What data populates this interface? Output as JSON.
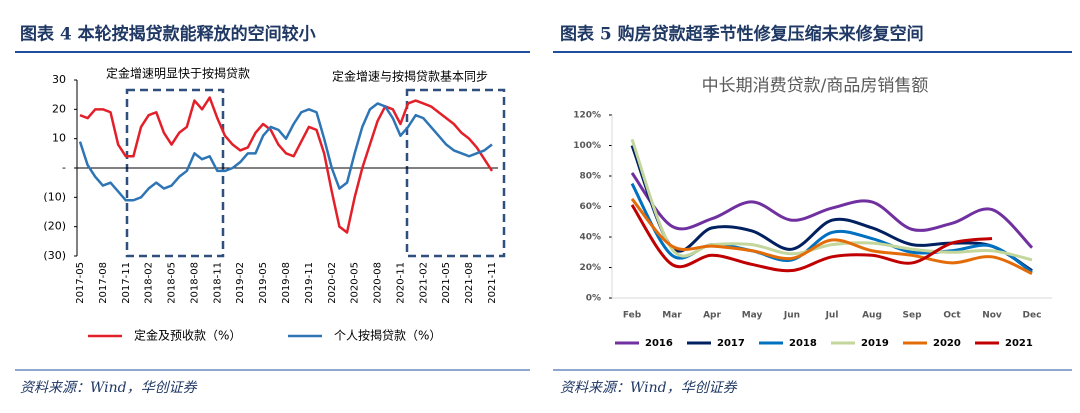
{
  "chart_data": [
    {
      "type": "line",
      "title": "图表 4 本轮按揭贷款能释放的空间较小",
      "annotations": [
        "定金增速明显快于按揭贷款",
        "定金增速与按揭贷款基本同步"
      ],
      "categories": [
        "2017-05",
        null,
        null,
        "2017-08",
        null,
        null,
        "2017-11",
        null,
        null,
        "2018-02",
        null,
        null,
        "2018-05",
        null,
        null,
        "2018-08",
        null,
        null,
        "2018-11",
        null,
        null,
        "2019-02",
        null,
        null,
        "2019-05",
        null,
        null,
        "2019-08",
        null,
        null,
        "2019-11",
        null,
        null,
        "2020-02",
        null,
        null,
        "2020-05",
        null,
        null,
        "2020-08",
        null,
        null,
        "2020-11",
        null,
        null,
        "2021-02",
        null,
        null,
        "2021-05",
        null,
        null,
        "2021-08",
        null,
        null,
        "2021-11"
      ],
      "series": [
        {
          "name": "定金及预收款（%）",
          "color": "#e3202a",
          "values": [
            18,
            17,
            20,
            20,
            19,
            8,
            4,
            4,
            14,
            18,
            19,
            12,
            8,
            12,
            14,
            23,
            20,
            24,
            17,
            11,
            8,
            6,
            7,
            12,
            15,
            13,
            8,
            5,
            4,
            9,
            14,
            13,
            5,
            -8,
            -20,
            -22,
            -10,
            0,
            8,
            16,
            21,
            20,
            15,
            22,
            23,
            22,
            21,
            19,
            17,
            15,
            12,
            10,
            7,
            3,
            -1
          ]
        },
        {
          "name": "个人按揭贷款（%）",
          "color": "#2e75b6",
          "values": [
            9,
            1,
            -3,
            -6,
            -5,
            -8,
            -11,
            -11,
            -10,
            -7,
            -5,
            -7,
            -6,
            -3,
            -1,
            5,
            3,
            4,
            -1,
            -1,
            0,
            2,
            5,
            5,
            11,
            14,
            13,
            10,
            15,
            19,
            20,
            19,
            10,
            0,
            -7,
            -5,
            5,
            14,
            20,
            22,
            21,
            17,
            11,
            14,
            18,
            17,
            14,
            11,
            8,
            6,
            5,
            4,
            5,
            6,
            8
          ]
        }
      ],
      "ylim": [
        -30,
        30
      ],
      "yticks": [
        {
          "value": -30,
          "label": "(30)"
        },
        {
          "value": -20,
          "label": "(20)"
        },
        {
          "value": -10,
          "label": "(10)"
        },
        {
          "value": 0,
          "label": "-"
        },
        10,
        20,
        30
      ],
      "source": "资料来源：Wind，华创证券"
    },
    {
      "type": "line",
      "smooth": true,
      "title": "图表 5 购房贷款超季节性修复压缩未来修复空间",
      "subtitle": "中长期消费贷款/商品房销售额",
      "categories": [
        "Feb",
        "Mar",
        "Apr",
        "May",
        "Jun",
        "Jul",
        "Aug",
        "Sep",
        "Oct",
        "Nov",
        "Dec"
      ],
      "series": [
        {
          "name": "2016",
          "color": "#7030a0",
          "values": [
            82,
            47,
            52,
            63,
            51,
            59,
            63,
            45,
            49,
            58,
            33
          ]
        },
        {
          "name": "2017",
          "color": "#002060",
          "values": [
            100,
            33,
            46,
            44,
            32,
            51,
            46,
            35,
            36,
            34,
            18
          ]
        },
        {
          "name": "2018",
          "color": "#0070c0",
          "values": [
            75,
            28,
            35,
            31,
            25,
            43,
            39,
            30,
            31,
            34,
            17
          ]
        },
        {
          "name": "2019",
          "color": "#c3d69b",
          "values": [
            104,
            32,
            35,
            35,
            29,
            35,
            36,
            32,
            30,
            31,
            25
          ]
        },
        {
          "name": "2020",
          "color": "#e36c09",
          "values": [
            65,
            34,
            34,
            31,
            26,
            38,
            31,
            28,
            23,
            27,
            16
          ]
        },
        {
          "name": "2021",
          "color": "#c00000",
          "values": [
            61,
            22,
            28,
            22,
            18,
            27,
            28,
            23,
            36,
            39,
            null
          ]
        }
      ],
      "ylim": [
        0,
        120
      ],
      "yticks": [
        {
          "value": 0,
          "label": "0%"
        },
        {
          "value": 20,
          "label": "20%"
        },
        {
          "value": 40,
          "label": "40%"
        },
        {
          "value": 60,
          "label": "60%"
        },
        {
          "value": 80,
          "label": "80%"
        },
        {
          "value": 100,
          "label": "100%"
        },
        {
          "value": 120,
          "label": "120%"
        }
      ],
      "source": "资料来源：Wind，华创证券"
    }
  ]
}
